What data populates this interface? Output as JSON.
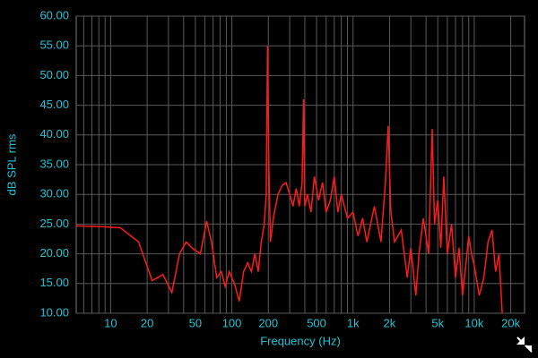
{
  "chart_data": {
    "type": "line",
    "x_label": "Frequency (Hz)",
    "y_label": "dB SPL rms",
    "x": [
      5.2,
      8,
      12,
      17,
      22,
      27,
      32,
      37,
      42,
      47,
      55,
      62,
      68,
      75,
      82,
      88,
      95,
      105,
      115,
      125,
      135,
      145,
      155,
      165,
      175,
      185,
      192,
      197,
      202,
      208,
      220,
      240,
      260,
      280,
      300,
      320,
      340,
      360,
      380,
      390,
      400,
      420,
      450,
      480,
      520,
      560,
      600,
      650,
      700,
      750,
      800,
      900,
      1000,
      1100,
      1200,
      1300,
      1500,
      1700,
      1850,
      1950,
      2050,
      2200,
      2500,
      2800,
      3000,
      3300,
      3500,
      3800,
      4200,
      4500,
      4700,
      5000,
      5300,
      5600,
      6000,
      6500,
      7000,
      7500,
      8000,
      8500,
      9000,
      9500,
      10000,
      11000,
      12000,
      13000,
      14000,
      15000,
      16000,
      17000
    ],
    "values": [
      24.7,
      24.6,
      24.4,
      22,
      15.5,
      16.5,
      13.5,
      20,
      22,
      21,
      20,
      25.5,
      22,
      16,
      17,
      14.5,
      17,
      15,
      12,
      17,
      18.5,
      17,
      20,
      17,
      22,
      25,
      30,
      55,
      35,
      22,
      26,
      30,
      31.5,
      32,
      30,
      28,
      31,
      28,
      32,
      46,
      28,
      30,
      27,
      33,
      29,
      32,
      27,
      29,
      33,
      27,
      30,
      26,
      27,
      23,
      26,
      22,
      28,
      22,
      32,
      41.5,
      27,
      22,
      24,
      16,
      21,
      13,
      20,
      26,
      20,
      41,
      25,
      29,
      21,
      33,
      20,
      25,
      16,
      21,
      13,
      18,
      23,
      20,
      18,
      13,
      16,
      22,
      24,
      17,
      20,
      10
    ],
    "color": "#ff1a1a",
    "xscale": "log",
    "xlim": [
      5.2,
      26000
    ],
    "xticks": [
      10,
      20,
      50,
      100,
      200,
      500,
      {
        "value": 1000,
        "label": "1k"
      },
      {
        "value": 2000,
        "label": "2k"
      },
      {
        "value": 5000,
        "label": "5k"
      },
      {
        "value": 10000,
        "label": "10k"
      },
      {
        "value": 20000,
        "label": "20k"
      }
    ],
    "xminor": [
      6,
      7,
      8,
      9,
      30,
      40,
      60,
      70,
      80,
      90,
      300,
      400,
      600,
      700,
      800,
      900,
      3000,
      4000,
      6000,
      7000,
      8000,
      9000
    ],
    "ylim": [
      10,
      60
    ],
    "yticks": [
      {
        "value": 10,
        "label": "10.00"
      },
      {
        "value": 15,
        "label": "15.00"
      },
      {
        "value": 20,
        "label": "20.00"
      },
      {
        "value": 25,
        "label": "25.00"
      },
      {
        "value": 30,
        "label": "30.00"
      },
      {
        "value": 35,
        "label": "35.00"
      },
      {
        "value": 40,
        "label": "40.00"
      },
      {
        "value": 45,
        "label": "45.00"
      },
      {
        "value": 50,
        "label": "50.00"
      },
      {
        "value": 55,
        "label": "55.00"
      },
      {
        "value": 60,
        "label": "60.00"
      }
    ],
    "grid": true
  }
}
